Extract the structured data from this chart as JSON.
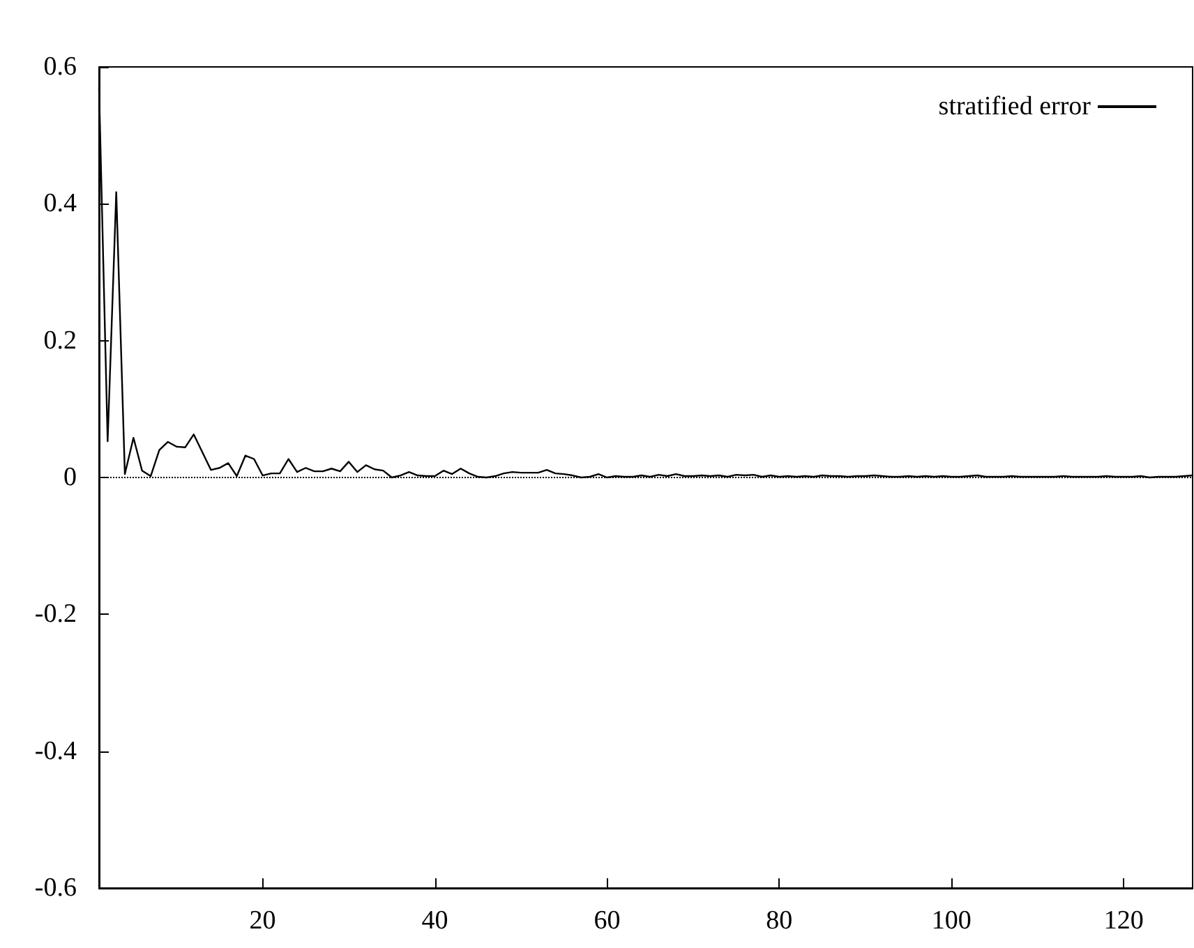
{
  "chart_data": {
    "type": "line",
    "x": [
      1,
      2,
      3,
      4,
      5,
      6,
      7,
      8,
      9,
      10,
      11,
      12,
      13,
      14,
      15,
      16,
      17,
      18,
      19,
      20,
      21,
      22,
      23,
      24,
      25,
      26,
      27,
      28,
      29,
      30,
      31,
      32,
      33,
      34,
      35,
      36,
      37,
      38,
      39,
      40,
      41,
      42,
      43,
      44,
      45,
      46,
      47,
      48,
      49,
      50,
      51,
      52,
      53,
      54,
      55,
      56,
      57,
      58,
      59,
      60,
      61,
      62,
      63,
      64,
      65,
      66,
      67,
      68,
      69,
      70,
      71,
      72,
      73,
      74,
      75,
      76,
      77,
      78,
      79,
      80,
      81,
      82,
      83,
      84,
      85,
      86,
      87,
      88,
      89,
      90,
      91,
      92,
      93,
      94,
      95,
      96,
      97,
      98,
      99,
      100,
      101,
      102,
      103,
      104,
      105,
      106,
      107,
      108,
      109,
      110,
      111,
      112,
      113,
      114,
      115,
      116,
      117,
      118,
      119,
      120,
      121,
      122,
      123,
      124,
      125,
      126,
      127,
      128
    ],
    "series": [
      {
        "name": "stratified error",
        "color": "#000000",
        "values": [
          0.57,
          0.053,
          0.417,
          0.005,
          0.058,
          0.01,
          0.002,
          0.04,
          0.052,
          0.045,
          0.044,
          0.063,
          0.037,
          0.011,
          0.014,
          0.021,
          0.002,
          0.032,
          0.027,
          0.003,
          0.006,
          0.006,
          0.027,
          0.008,
          0.014,
          0.009,
          0.009,
          0.013,
          0.009,
          0.023,
          0.008,
          0.018,
          0.012,
          0.01,
          0,
          0.003,
          0.008,
          0.003,
          0.002,
          0.002,
          0.01,
          0.005,
          0.013,
          0.006,
          0.001,
          0,
          0.002,
          0.006,
          0.008,
          0.007,
          0.007,
          0.007,
          0.011,
          0.006,
          0.005,
          0.003,
          0,
          0.001,
          0.005,
          0,
          0.002,
          0.001,
          0.001,
          0.003,
          0.001,
          0.004,
          0.002,
          0.005,
          0.002,
          0.002,
          0.003,
          0.002,
          0.003,
          0.001,
          0.004,
          0.003,
          0.004,
          0.001,
          0.003,
          0.001,
          0.002,
          0.001,
          0.002,
          0.001,
          0.003,
          0.002,
          0.002,
          0.001,
          0.002,
          0.002,
          0.003,
          0.002,
          0.001,
          0.001,
          0.002,
          0.001,
          0.002,
          0.001,
          0.002,
          0.001,
          0.001,
          0.002,
          0.003,
          0.001,
          0.001,
          0.001,
          0.002,
          0.001,
          0.001,
          0.001,
          0.001,
          0.001,
          0.002,
          0.001,
          0.001,
          0.001,
          0.001,
          0.002,
          0.001,
          0.001,
          0.001,
          0.002,
          0,
          0.001,
          0.001,
          0.001,
          0.002,
          0.003
        ]
      }
    ],
    "xlim": [
      1,
      128
    ],
    "xticks": [
      20,
      40,
      60,
      80,
      100,
      120
    ],
    "ylim": [
      -0.6,
      0.6
    ],
    "yticks": [
      -0.6,
      -0.4,
      -0.2,
      0,
      0.2,
      0.4,
      0.6
    ],
    "ref_lines": [
      {
        "axis": "y",
        "value": 0,
        "color": "#000000",
        "line_style": "dotted"
      }
    ],
    "grid": false,
    "legend": "top right",
    "marker": "none",
    "line_style": "solid"
  }
}
